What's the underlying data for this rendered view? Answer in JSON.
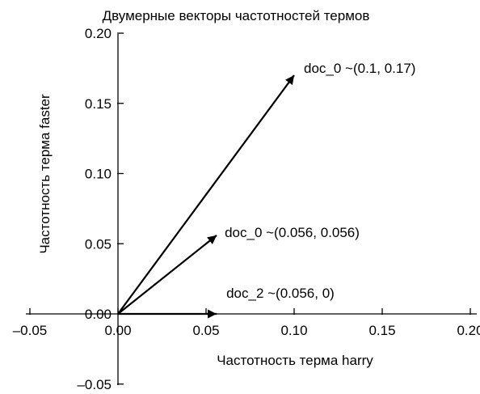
{
  "chart_data": {
    "type": "vector",
    "title": "Двумерные векторы частотностей термов",
    "xlabel": "Частотность терма harry",
    "ylabel": "Частотность терма faster",
    "xlim": [
      -0.05,
      0.2
    ],
    "ylim": [
      -0.05,
      0.2
    ],
    "xticks": [
      "–0.05",
      "0.00",
      "0.05",
      "0.10",
      "0.15",
      "0.20"
    ],
    "xtick_values": [
      -0.05,
      0.0,
      0.05,
      0.1,
      0.15,
      0.2
    ],
    "yticks": [
      "–0.05",
      "0.00",
      "0.05",
      "0.10",
      "0.15",
      "0.20"
    ],
    "ytick_values": [
      -0.05,
      0.0,
      0.05,
      0.1,
      0.15,
      0.2
    ],
    "grid": false,
    "vectors": [
      {
        "label": "doc_0 ~(0.1, 0.17)",
        "x": 0.1,
        "y": 0.17
      },
      {
        "label": "doc_0 ~(0.056, 0.056)",
        "x": 0.056,
        "y": 0.056
      },
      {
        "label": "doc_2 ~(0.056, 0)",
        "x": 0.056,
        "y": 0.0
      }
    ],
    "color": "#000000"
  }
}
